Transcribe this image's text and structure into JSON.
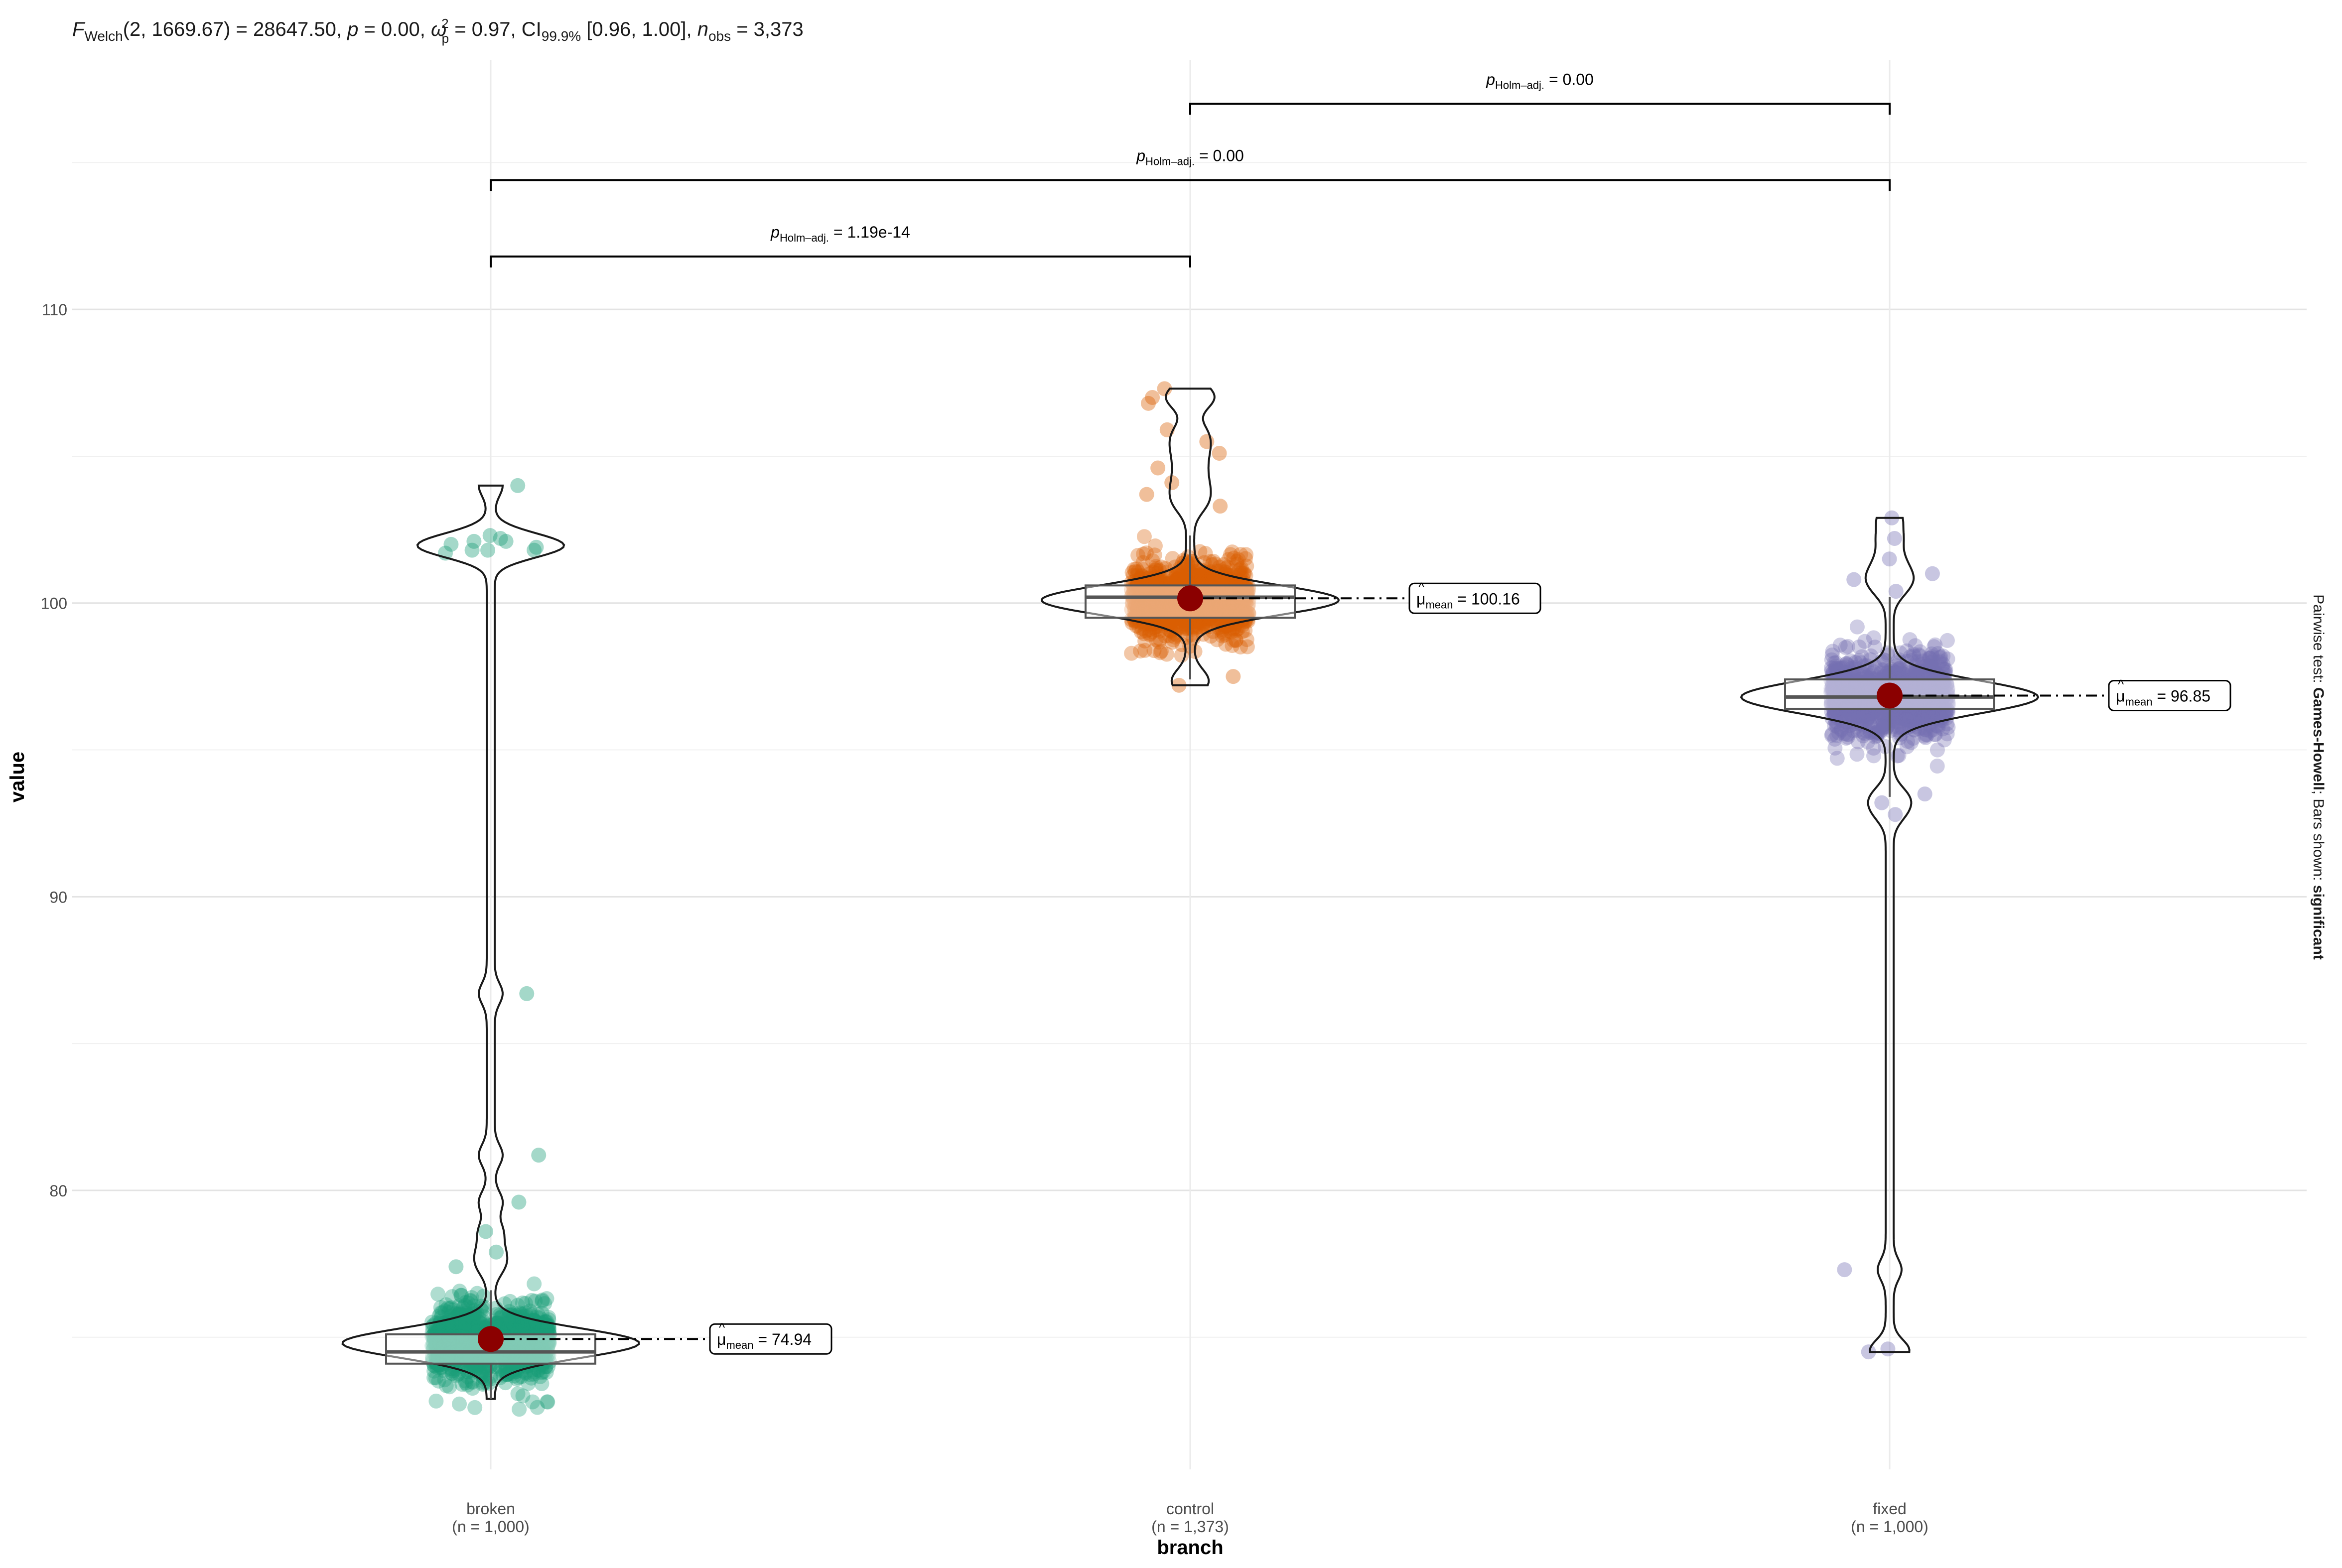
{
  "chart_data": {
    "type": "violin-box-scatter",
    "subtitle": {
      "f_symbol": "F",
      "f_subscript": "Welch",
      "f_args": "(2, 1669.67) = 28647.50, ",
      "p_symbol": "p",
      "p_value": " = 0.00, ",
      "omega_symbol": "ω",
      "omega_superscript": "2",
      "omega_subscript": "p",
      "omega_value": " = 0.97, CI",
      "ci_subscript": "99.9%",
      "ci_value": " [0.96, 1.00], ",
      "n_symbol": "n",
      "n_subscript": "obs",
      "n_value": " = 3,373"
    },
    "xlabel": "branch",
    "ylabel": "value",
    "y_range": [
      70.5,
      118.5
    ],
    "y_ticks": [
      80,
      90,
      100,
      110
    ],
    "y_tick_labels": [
      "80",
      "90",
      "100",
      "110"
    ],
    "categories": [
      {
        "name": "broken",
        "n_label": "(n = 1,000)",
        "color": "#1b9e77",
        "mean": 74.94,
        "mean_label_prefix": "μ",
        "mean_label_sub": "mean",
        "mean_label_value": " = 74.94",
        "box": {
          "q1": 74.1,
          "median": 74.5,
          "q3": 75.1,
          "whisker_low": 72.9,
          "whisker_high": 76.6
        },
        "cluster": {
          "center": 74.8,
          "sd": 0.9
        },
        "outliers": [
          104.0,
          101.8,
          101.8,
          101.8,
          102.0,
          102.3,
          102.1,
          102.2,
          101.7,
          101.9,
          102.1,
          86.7,
          81.2,
          79.6,
          78.6,
          77.9,
          77.4
        ]
      },
      {
        "name": "control",
        "n_label": "(n = 1,373)",
        "color": "#d95f02",
        "mean": 100.16,
        "mean_label_prefix": "μ",
        "mean_label_sub": "mean",
        "mean_label_value": " = 100.16",
        "box": {
          "q1": 99.5,
          "median": 100.2,
          "q3": 100.6,
          "whisker_low": 97.4,
          "whisker_high": 102.3
        },
        "cluster": {
          "center": 100.1,
          "sd": 0.9
        },
        "outliers": [
          107.3,
          107.0,
          106.8,
          105.9,
          105.5,
          105.1,
          104.6,
          104.1,
          103.7,
          103.3,
          97.2,
          97.5
        ]
      },
      {
        "name": "fixed",
        "n_label": "(n = 1,000)",
        "color": "#7570b3",
        "mean": 96.85,
        "mean_label_prefix": "μ",
        "mean_label_sub": "mean",
        "mean_label_value": " = 96.85",
        "box": {
          "q1": 96.4,
          "median": 96.8,
          "q3": 97.4,
          "whisker_low": 93.4,
          "whisker_high": 100.2
        },
        "cluster": {
          "center": 96.8,
          "sd": 1.0
        },
        "outliers": [
          102.9,
          102.2,
          101.5,
          101.0,
          100.8,
          100.4,
          92.8,
          93.2,
          93.5,
          77.3,
          74.6,
          74.5
        ]
      }
    ],
    "comparisons": [
      {
        "from": "control",
        "to": "fixed",
        "y": 117.0,
        "label_p": "p",
        "label_sub": "Holm–adj.",
        "label_value": " = 0.00"
      },
      {
        "from": "broken",
        "to": "fixed",
        "y": 114.4,
        "label_p": "p",
        "label_sub": "Holm–adj.",
        "label_value": " = 0.00"
      },
      {
        "from": "broken",
        "to": "control",
        "y": 111.8,
        "label_p": "p",
        "label_sub": "Holm–adj.",
        "label_value": " = 1.19e-14"
      }
    ],
    "caption": {
      "prefix": "Pairwise test: ",
      "test": "Games-Howell",
      "middle": "; Bars shown: ",
      "bars": "significant"
    },
    "colors": {
      "mean_point": "#8b0000",
      "grid": "#ebebeb",
      "line": "#1a1a1a",
      "box": "#555555"
    }
  }
}
